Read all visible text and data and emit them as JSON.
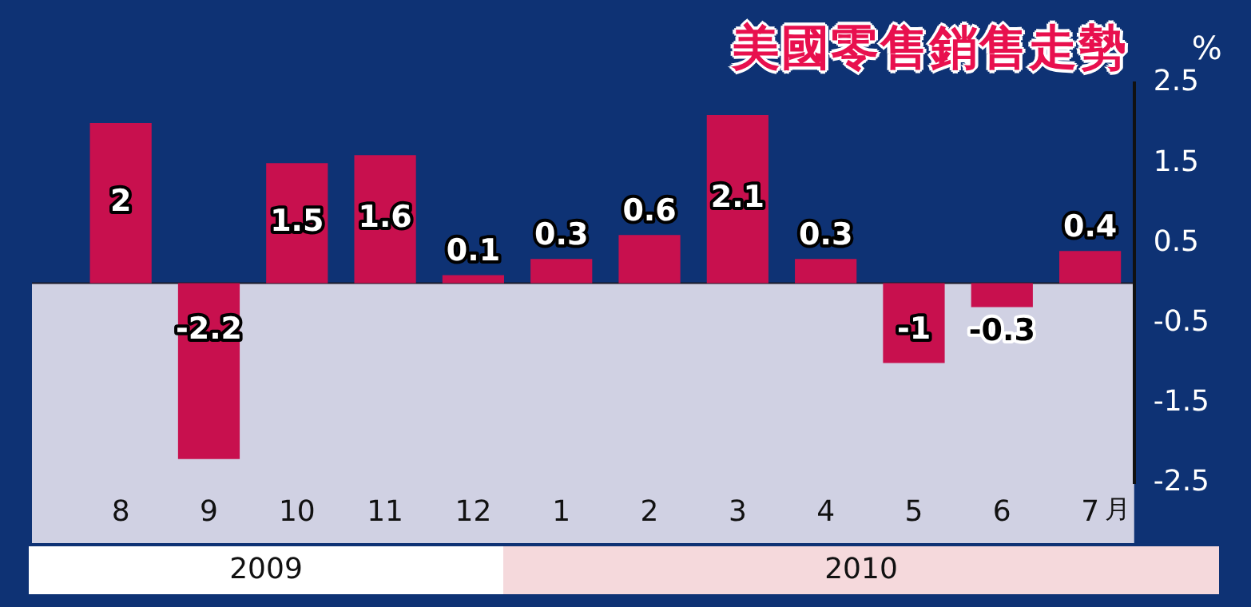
{
  "chart_data": {
    "type": "bar",
    "title": "美國零售銷售走勢",
    "ylabel": "%",
    "xlabel": "月",
    "categories": [
      "8",
      "9",
      "10",
      "11",
      "12",
      "1",
      "2",
      "3",
      "4",
      "5",
      "6",
      "7"
    ],
    "values": [
      2,
      -2.2,
      1.5,
      1.6,
      0.1,
      0.3,
      0.6,
      2.1,
      0.3,
      -1,
      -0.3,
      0.4
    ],
    "color": "#c8104e",
    "ylim": [
      -2.5,
      2.5
    ],
    "yticks": [
      2.5,
      1.5,
      0.5,
      -0.5,
      -1.5,
      -2.5
    ],
    "data_labels": true,
    "grid": false,
    "legend": false,
    "annotations": [
      "2009",
      "2010"
    ]
  }
}
